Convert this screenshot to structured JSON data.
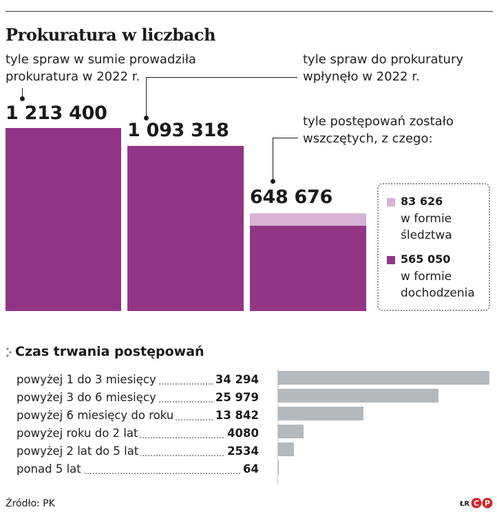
{
  "title": "Prokuratura w liczbach",
  "top_section": {
    "caption_total": [
      "tyle spraw w sumie prowadziła",
      "prokuratura w 2022 r."
    ],
    "caption_received": [
      "tyle spraw do prokuratury",
      "wpłynęło w 2022 r."
    ],
    "caption_initiated": [
      "tyle postępowań zostało",
      "wszczętych, z czego:"
    ],
    "value_labels": [
      "1 213 400",
      "1 093 318",
      "648 676"
    ]
  },
  "legend": {
    "items": [
      {
        "value_label": "83 626",
        "text": [
          "w formie",
          "śledztwa"
        ],
        "color": "#d8b3d5"
      },
      {
        "value_label": "565 050",
        "text": [
          "w formie",
          "dochodzenia"
        ],
        "color": "#923586"
      }
    ]
  },
  "duration_section": {
    "title": "Czas trwania postępowań",
    "rows": [
      {
        "label": "powyżej 1 do 3 miesięcy",
        "value_label": "34 294"
      },
      {
        "label": "powyżej 3 do 6 miesięcy",
        "value_label": "25 979"
      },
      {
        "label": "powyżej 6 miesięcy do roku",
        "value_label": "13 842"
      },
      {
        "label": "powyżej roku do 2 lat",
        "value_label": "4080"
      },
      {
        "label": "powyżej 2 lat do 5 lat",
        "value_label": "2534"
      },
      {
        "label": "ponad 5 lat",
        "value_label": "64"
      }
    ]
  },
  "footer": {
    "source": "Źródło: PK",
    "credit": "ŁR",
    "logo_text": "CP"
  },
  "colors": {
    "primary_bar": "#923586",
    "secondary_bar": "#d8b3d5",
    "duration_bar": "#b4b9bd"
  },
  "chart_data": [
    {
      "type": "bar",
      "categories": [
        "tyle spraw w sumie prowadziła prokuratura w 2022 r.",
        "tyle spraw do prokuratury wpłynęło w 2022 r.",
        "tyle postępowań zostało wszczętych, z czego:"
      ],
      "stacked": true,
      "series": [
        {
          "name": "w formie dochodzenia",
          "values": [
            1213400,
            1093318,
            565050
          ]
        },
        {
          "name": "w formie śledztwa",
          "values": [
            0,
            0,
            83626
          ]
        }
      ],
      "totals": [
        1213400,
        1093318,
        648676
      ]
    },
    {
      "type": "bar",
      "orientation": "horizontal",
      "title": "Czas trwania postępowań",
      "categories": [
        "powyżej 1 do 3 miesięcy",
        "powyżej 3 do 6 miesięcy",
        "powyżej 6 miesięcy do roku",
        "powyżej roku do 2 lat",
        "powyżej 2 lat do 5 lat",
        "ponad 5 lat"
      ],
      "values": [
        34294,
        25979,
        13842,
        4080,
        2534,
        64
      ]
    }
  ]
}
